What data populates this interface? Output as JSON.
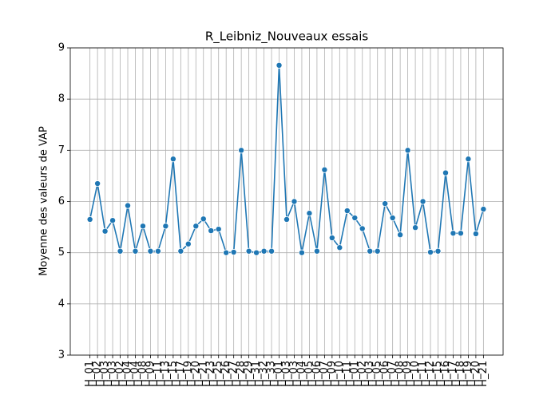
{
  "chart_data": {
    "type": "line",
    "title": "R_Leibniz_Nouveaux essais",
    "y_label": "Moyenne des valeurs de VAP",
    "categories": [
      "H_01",
      "H_02",
      "H_03",
      "H_03",
      "H_02",
      "H_04",
      "H_04",
      "H_08",
      "H_09",
      "H_11",
      "H_13",
      "H_15",
      "H_17",
      "H_19",
      "H_20",
      "H_21",
      "H_23",
      "H_25",
      "H_26",
      "H_27",
      "H_28",
      "H_29",
      "H_31",
      "H_32",
      "H_33",
      "H_01",
      "H_03",
      "H_03",
      "H_04",
      "H_05",
      "H_06",
      "H_07",
      "H_09",
      "H_10",
      "H_11",
      "H_01",
      "H_02",
      "H_03",
      "H_05",
      "H_06",
      "H_07",
      "H_08",
      "H_09",
      "H_10",
      "H_11",
      "H_12",
      "H_15",
      "H_16",
      "H_17",
      "H_18",
      "H_19",
      "H_20",
      "H_21"
    ],
    "series": [
      {
        "name": "VAP",
        "color": "#1f77b4",
        "values": [
          5.65,
          6.35,
          5.42,
          5.63,
          5.03,
          5.92,
          5.03,
          5.52,
          5.03,
          5.03,
          5.52,
          6.83,
          5.03,
          5.17,
          5.52,
          5.66,
          5.43,
          5.46,
          5.0,
          5.01,
          7.0,
          5.03,
          5.0,
          5.03,
          5.03,
          8.66,
          5.65,
          6.0,
          5.0,
          5.77,
          5.03,
          6.62,
          5.29,
          5.1,
          5.82,
          5.68,
          5.47,
          5.03,
          5.03,
          5.96,
          5.68,
          5.35,
          7.0,
          5.49,
          6.0,
          5.01,
          5.03,
          6.56,
          5.38,
          5.38,
          6.83,
          5.37,
          5.85
        ]
      }
    ],
    "ylim": [
      3,
      9
    ],
    "yticks": [
      3,
      4,
      5,
      6,
      7,
      8,
      9
    ],
    "grid": true
  }
}
